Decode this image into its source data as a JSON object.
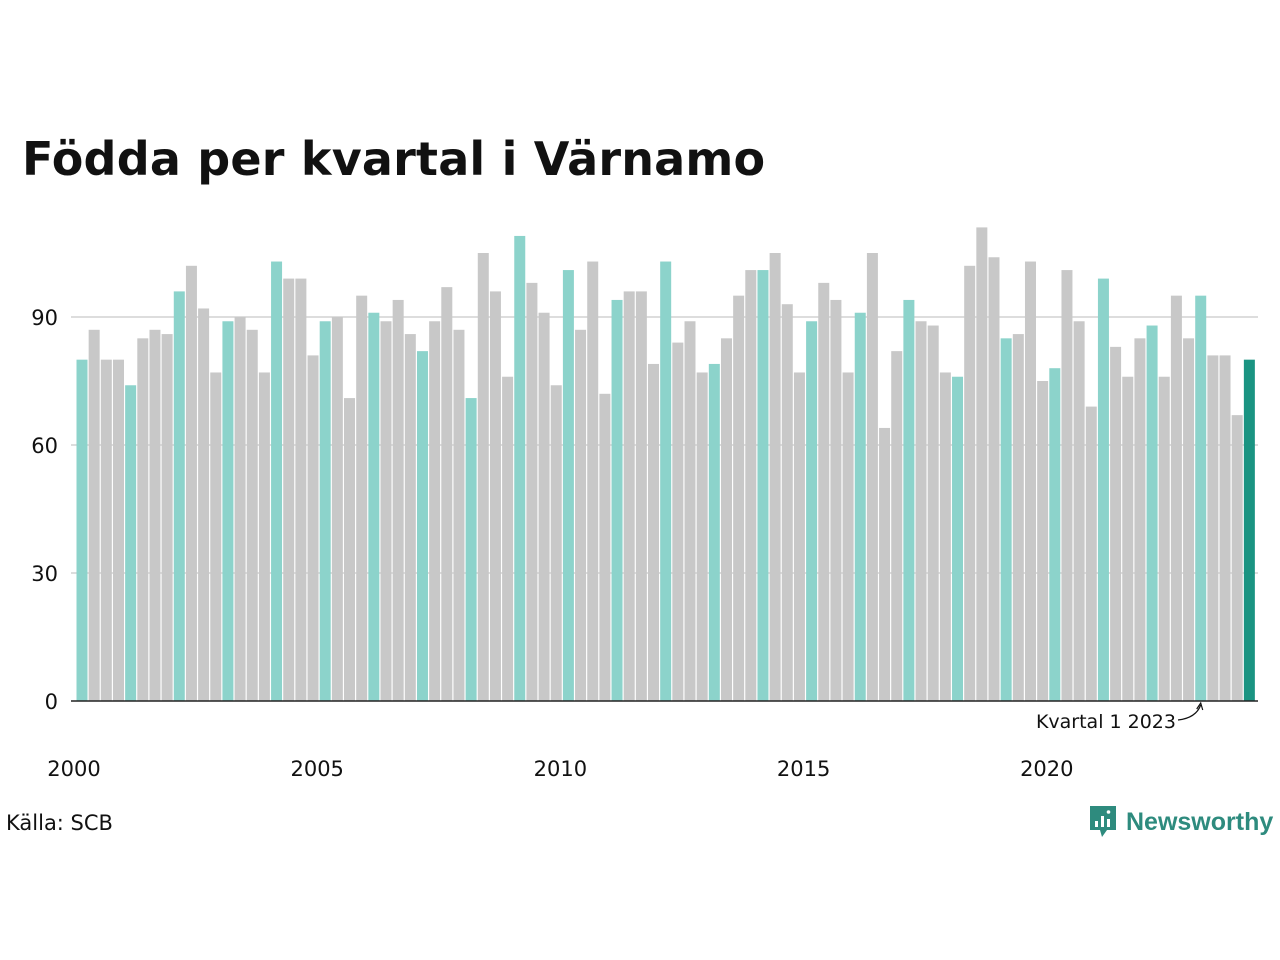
{
  "chart_data": {
    "type": "bar",
    "title": "Födda per kvartal i Värnamo",
    "xlabel": "",
    "ylabel": "",
    "ylim": [
      0,
      115
    ],
    "y_ticks": [
      0,
      30,
      60,
      90
    ],
    "x_tick_labels": [
      "2000",
      "2005",
      "2010",
      "2015",
      "2020"
    ],
    "grid": true,
    "start_year": 2000,
    "values": [
      80,
      87,
      80,
      80,
      74,
      85,
      87,
      86,
      96,
      102,
      92,
      77,
      89,
      90,
      87,
      77,
      103,
      99,
      99,
      81,
      89,
      90,
      71,
      95,
      91,
      89,
      94,
      86,
      82,
      89,
      97,
      87,
      71,
      105,
      96,
      76,
      109,
      98,
      91,
      74,
      101,
      87,
      103,
      72,
      94,
      96,
      96,
      79,
      103,
      84,
      89,
      77,
      79,
      85,
      95,
      101,
      101,
      105,
      93,
      77,
      89,
      98,
      94,
      77,
      91,
      105,
      64,
      82,
      94,
      89,
      88,
      77,
      76,
      102,
      111,
      104,
      85,
      86,
      103,
      75,
      78,
      101,
      89,
      69,
      99,
      83,
      76,
      85,
      88,
      76,
      95,
      85,
      95,
      81,
      81,
      67,
      80
    ],
    "annotation": {
      "text": "Kvartal 1 2023",
      "index": 92
    },
    "colors": {
      "q1": "#8cd3cb",
      "other": "#c8c8c8",
      "latest": "#1a9482",
      "grid": "#dddddd",
      "axis": "#222222"
    }
  },
  "footer": {
    "source": "Källa: SCB",
    "brand": "Newsworthy"
  }
}
